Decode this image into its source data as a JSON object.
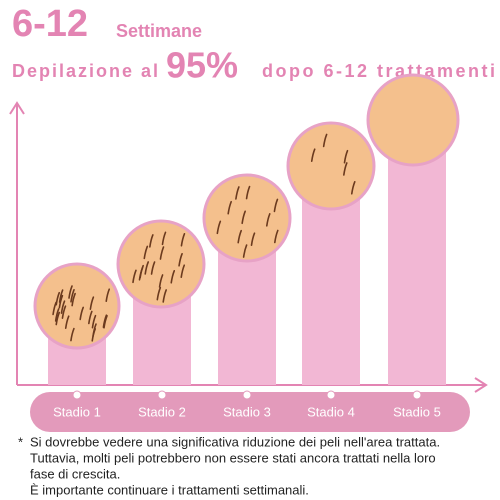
{
  "header": {
    "weeks_number": "6-12",
    "weeks_label": "Settimane",
    "line2_prefix": "Depilazione al",
    "line2_percent": "95%",
    "line2_suffix": "dopo 6-12 trattamenti"
  },
  "stages": [
    "Stadio 1",
    "Stadio 2",
    "Stadio 3",
    "Stadio 4",
    "Stadio 5"
  ],
  "footnote": {
    "marker": "*",
    "lines": [
      "Si dovrebbe vedere una significativa riduzione dei peli nell'area trattata.",
      "Tuttavia, molti peli potrebbero non essere stati ancora trattati nella loro",
      "fase di crescita.",
      "È importante continuare i trattamenti settimanali."
    ]
  }
}
